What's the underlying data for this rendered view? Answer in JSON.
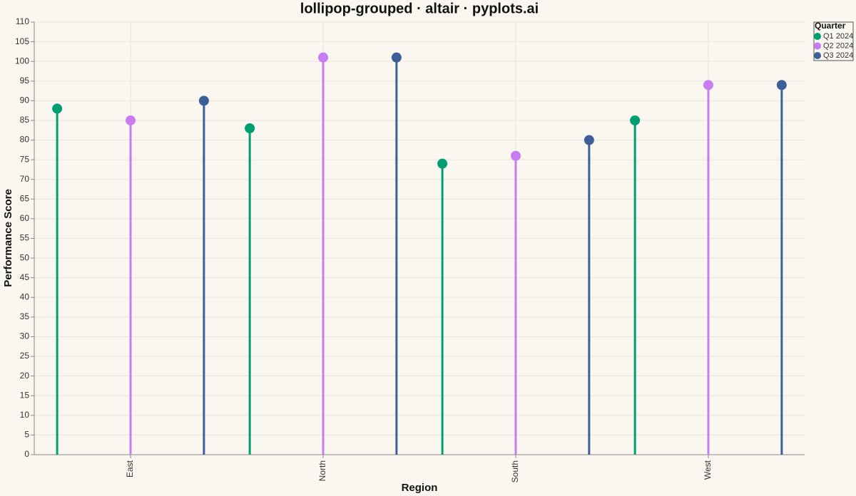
{
  "chart_data": {
    "type": "lollipop",
    "title": "lollipop-grouped · altair · pyplots.ai",
    "x_label": "Region",
    "y_label": "Performance Score",
    "categories": [
      "East",
      "North",
      "South",
      "West"
    ],
    "legend_title": "Quarter",
    "legend_position": "top-right",
    "series": [
      {
        "name": "Q1 2024",
        "color": "#009e73",
        "values": [
          88,
          83,
          74,
          85
        ]
      },
      {
        "name": "Q2 2024",
        "color": "#c77cf0",
        "values": [
          85,
          101,
          76,
          94
        ]
      },
      {
        "name": "Q3 2024",
        "color": "#3d5f99",
        "values": [
          90,
          101,
          80,
          94
        ]
      }
    ],
    "ylim": [
      0,
      110
    ],
    "yticks": [
      0,
      5,
      10,
      15,
      20,
      25,
      30,
      35,
      40,
      45,
      50,
      55,
      60,
      65,
      70,
      75,
      80,
      85,
      90,
      95,
      100,
      105,
      110
    ],
    "grid": true
  }
}
